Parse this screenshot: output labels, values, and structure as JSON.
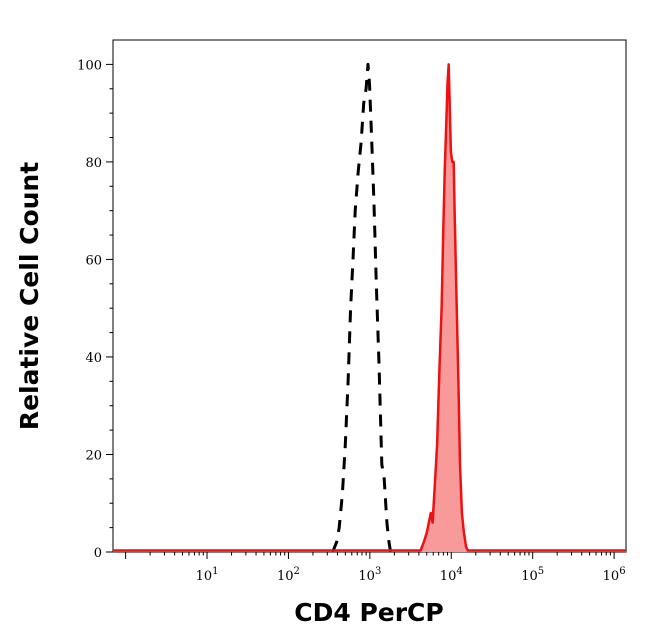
{
  "chart_data": {
    "type": "area",
    "title": "",
    "xlabel": "CD4 PerCP",
    "ylabel": "Relative Cell Count",
    "x_scale": "log",
    "xlim": [
      0.7,
      1400000
    ],
    "ylim": [
      0,
      105
    ],
    "x_ticks": [
      {
        "value": 10,
        "base": "10",
        "exp": "1"
      },
      {
        "value": 100,
        "base": "10",
        "exp": "2"
      },
      {
        "value": 1000,
        "base": "10",
        "exp": "3"
      },
      {
        "value": 10000,
        "base": "10",
        "exp": "4"
      },
      {
        "value": 100000,
        "base": "10",
        "exp": "5"
      },
      {
        "value": 1000000,
        "base": "10",
        "exp": "6"
      }
    ],
    "y_ticks": [
      0,
      20,
      40,
      60,
      80,
      100
    ],
    "grid": false,
    "legend": "none",
    "series": [
      {
        "style": "dashed",
        "color": "#000000",
        "fill": "none",
        "points": [
          [
            350,
            0
          ],
          [
            390,
            2
          ],
          [
            420,
            5
          ],
          [
            460,
            12
          ],
          [
            500,
            22
          ],
          [
            540,
            35
          ],
          [
            580,
            50
          ],
          [
            620,
            60
          ],
          [
            660,
            70
          ],
          [
            720,
            78
          ],
          [
            780,
            84
          ],
          [
            840,
            92
          ],
          [
            900,
            95
          ],
          [
            950,
            100
          ],
          [
            990,
            96
          ],
          [
            1050,
            85
          ],
          [
            1120,
            72
          ],
          [
            1200,
            55
          ],
          [
            1300,
            38
          ],
          [
            1400,
            18
          ],
          [
            1500,
            15
          ],
          [
            1620,
            6
          ],
          [
            1720,
            2
          ],
          [
            1800,
            0
          ]
        ]
      },
      {
        "style": "solid",
        "color": "#ee1111",
        "fill": "#f99a9a",
        "points": [
          [
            0.7,
            0.3
          ],
          [
            1000,
            0.3
          ],
          [
            4200,
            0.3
          ],
          [
            4600,
            2
          ],
          [
            5000,
            4
          ],
          [
            5600,
            8
          ],
          [
            5900,
            6
          ],
          [
            6300,
            14
          ],
          [
            6700,
            22
          ],
          [
            7100,
            36
          ],
          [
            7600,
            50
          ],
          [
            8000,
            67
          ],
          [
            8300,
            78
          ],
          [
            8700,
            88
          ],
          [
            9000,
            96
          ],
          [
            9300,
            100
          ],
          [
            9600,
            91
          ],
          [
            9900,
            82
          ],
          [
            10300,
            80
          ],
          [
            10700,
            80
          ],
          [
            11000,
            70
          ],
          [
            11500,
            55
          ],
          [
            12200,
            36
          ],
          [
            12800,
            18
          ],
          [
            13500,
            8
          ],
          [
            14300,
            4
          ],
          [
            15200,
            1
          ],
          [
            16000,
            0.3
          ],
          [
            1400000,
            0.3
          ]
        ]
      }
    ]
  }
}
